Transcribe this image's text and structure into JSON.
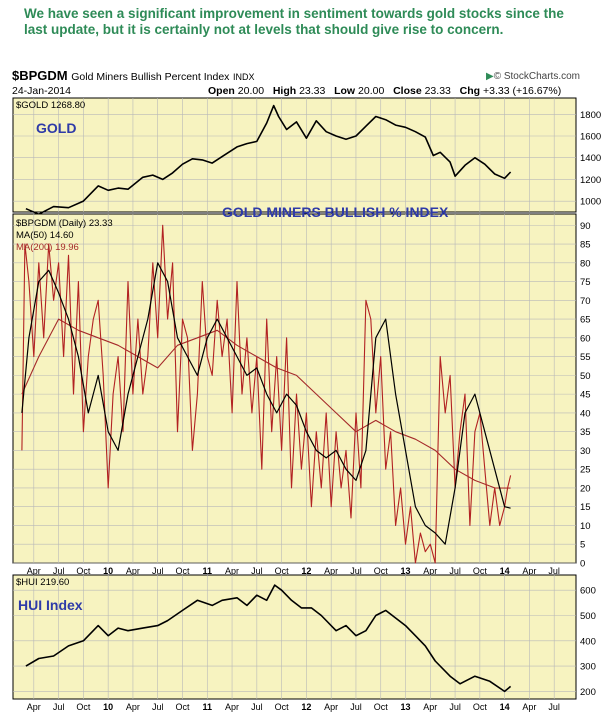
{
  "caption": "We have seen a significant improvement in sentiment towards gold stocks since the last update, but it is certainly not at levels that should give rise to concern.",
  "header": {
    "symbol": "$BPGDM",
    "name": "Gold Miners Bullish Percent Index",
    "exchange": "INDX",
    "date": "24-Jan-2014",
    "open_label": "Open",
    "open": "20.00",
    "high_label": "High",
    "high": "23.33",
    "low_label": "Low",
    "low": "20.00",
    "close_label": "Close",
    "close": "23.33",
    "chg_label": "Chg",
    "chg": "+3.33 (+16.67%)",
    "watermark": "© StockCharts.com",
    "watermark_arrow_icon": "triangle-right-icon"
  },
  "colors": {
    "panel_bg": "#f7f3c0",
    "grid": "#b8b8b8",
    "price_line": "#000000",
    "ma50": "#000000",
    "ma200": "#a52a2a",
    "bpgdm_line": "#b22222",
    "title_blue": "#2e3aa8",
    "caption_green": "#2e8b57"
  },
  "chart_data": [
    {
      "panel": "gold",
      "type": "line",
      "legend": "$GOLD 1268.80",
      "annotation": "GOLD",
      "ylim": [
        900,
        1950
      ],
      "yticks": [
        1000,
        1200,
        1400,
        1600,
        1800
      ],
      "grid": true,
      "x": [
        2009.17,
        2009.3,
        2009.45,
        2009.6,
        2009.75,
        2009.9,
        2010.0,
        2010.1,
        2010.2,
        2010.35,
        2010.45,
        2010.55,
        2010.65,
        2010.75,
        2010.85,
        2010.95,
        2011.05,
        2011.15,
        2011.3,
        2011.4,
        2011.5,
        2011.6,
        2011.67,
        2011.72,
        2011.8,
        2011.9,
        2012.0,
        2012.1,
        2012.2,
        2012.3,
        2012.4,
        2012.5,
        2012.6,
        2012.7,
        2012.8,
        2012.9,
        2013.0,
        2013.1,
        2013.2,
        2013.28,
        2013.35,
        2013.45,
        2013.5,
        2013.6,
        2013.7,
        2013.8,
        2013.9,
        2014.0,
        2014.06
      ],
      "values": [
        930,
        880,
        950,
        940,
        1000,
        1140,
        1100,
        1120,
        1110,
        1220,
        1240,
        1200,
        1260,
        1340,
        1390,
        1380,
        1350,
        1410,
        1500,
        1530,
        1550,
        1720,
        1880,
        1780,
        1660,
        1730,
        1580,
        1740,
        1640,
        1600,
        1570,
        1600,
        1690,
        1780,
        1750,
        1700,
        1680,
        1640,
        1590,
        1420,
        1450,
        1360,
        1230,
        1330,
        1400,
        1340,
        1250,
        1210,
        1268.8
      ]
    },
    {
      "panel": "bpgdm",
      "type": "line",
      "legend": [
        "$BPGDM (Daily) 23.33",
        "MA(50) 14.60",
        "MA(200) 19.96"
      ],
      "annotation": "GOLD MINERS BULLISH % INDEX",
      "ylim": [
        0,
        93
      ],
      "yticks": [
        0,
        5,
        10,
        15,
        20,
        25,
        30,
        35,
        40,
        45,
        50,
        55,
        60,
        65,
        70,
        75,
        80,
        85,
        90
      ],
      "grid": true,
      "series": [
        {
          "name": "$BPGDM (Daily) 23.33",
          "x": [
            2009.13,
            2009.16,
            2009.2,
            2009.25,
            2009.3,
            2009.35,
            2009.4,
            2009.45,
            2009.5,
            2009.55,
            2009.6,
            2009.65,
            2009.7,
            2009.75,
            2009.8,
            2009.85,
            2009.9,
            2009.95,
            2010.0,
            2010.05,
            2010.1,
            2010.15,
            2010.2,
            2010.25,
            2010.3,
            2010.35,
            2010.4,
            2010.45,
            2010.5,
            2010.55,
            2010.6,
            2010.65,
            2010.7,
            2010.75,
            2010.8,
            2010.85,
            2010.9,
            2010.95,
            2011.0,
            2011.05,
            2011.1,
            2011.15,
            2011.2,
            2011.25,
            2011.3,
            2011.35,
            2011.4,
            2011.45,
            2011.5,
            2011.55,
            2011.6,
            2011.65,
            2011.7,
            2011.75,
            2011.8,
            2011.85,
            2011.9,
            2011.95,
            2012.0,
            2012.05,
            2012.1,
            2012.15,
            2012.2,
            2012.25,
            2012.3,
            2012.35,
            2012.4,
            2012.45,
            2012.5,
            2012.55,
            2012.6,
            2012.65,
            2012.7,
            2012.75,
            2012.8,
            2012.85,
            2012.9,
            2012.95,
            2013.0,
            2013.05,
            2013.1,
            2013.15,
            2013.2,
            2013.25,
            2013.3,
            2013.35,
            2013.4,
            2013.45,
            2013.5,
            2013.55,
            2013.6,
            2013.65,
            2013.7,
            2013.75,
            2013.8,
            2013.85,
            2013.9,
            2013.95,
            2014.0,
            2014.03,
            2014.06
          ],
          "values": [
            30,
            85,
            75,
            55,
            80,
            60,
            85,
            70,
            80,
            55,
            82,
            45,
            75,
            35,
            55,
            65,
            70,
            50,
            20,
            45,
            55,
            35,
            75,
            45,
            65,
            45,
            55,
            80,
            60,
            90,
            65,
            80,
            35,
            65,
            60,
            30,
            45,
            75,
            55,
            50,
            70,
            55,
            65,
            40,
            75,
            45,
            60,
            40,
            55,
            25,
            65,
            35,
            55,
            30,
            60,
            20,
            45,
            25,
            40,
            15,
            35,
            20,
            40,
            15,
            35,
            20,
            30,
            12,
            40,
            20,
            70,
            65,
            40,
            55,
            25,
            35,
            10,
            20,
            5,
            15,
            0,
            8,
            3,
            5,
            0,
            55,
            40,
            50,
            20,
            35,
            45,
            10,
            35,
            40,
            25,
            10,
            20,
            10,
            15,
            20,
            23.33
          ]
        },
        {
          "name": "MA(50) 14.60",
          "x": [
            2009.13,
            2009.2,
            2009.3,
            2009.4,
            2009.5,
            2009.6,
            2009.7,
            2009.8,
            2009.9,
            2010.0,
            2010.1,
            2010.2,
            2010.3,
            2010.4,
            2010.5,
            2010.6,
            2010.7,
            2010.8,
            2010.9,
            2011.0,
            2011.1,
            2011.2,
            2011.3,
            2011.4,
            2011.5,
            2011.6,
            2011.7,
            2011.8,
            2011.9,
            2012.0,
            2012.1,
            2012.2,
            2012.3,
            2012.4,
            2012.5,
            2012.6,
            2012.7,
            2012.8,
            2012.9,
            2013.0,
            2013.1,
            2013.2,
            2013.3,
            2013.4,
            2013.5,
            2013.6,
            2013.7,
            2013.8,
            2013.9,
            2014.0,
            2014.06
          ],
          "values": [
            40,
            60,
            75,
            78,
            72,
            65,
            55,
            40,
            50,
            35,
            30,
            45,
            55,
            65,
            80,
            75,
            60,
            55,
            50,
            60,
            65,
            60,
            55,
            50,
            52,
            45,
            40,
            45,
            42,
            35,
            30,
            28,
            30,
            25,
            22,
            30,
            60,
            65,
            45,
            30,
            15,
            10,
            8,
            5,
            20,
            40,
            45,
            35,
            25,
            15,
            14.6
          ]
        },
        {
          "name": "MA(200) 19.96",
          "x": [
            2009.13,
            2009.3,
            2009.5,
            2009.7,
            2009.9,
            2010.1,
            2010.3,
            2010.5,
            2010.7,
            2010.9,
            2011.1,
            2011.3,
            2011.5,
            2011.7,
            2011.9,
            2012.1,
            2012.3,
            2012.5,
            2012.7,
            2012.9,
            2013.1,
            2013.3,
            2013.5,
            2013.7,
            2013.9,
            2014.06
          ],
          "values": [
            45,
            55,
            65,
            62,
            60,
            58,
            55,
            52,
            58,
            60,
            62,
            58,
            55,
            52,
            50,
            45,
            40,
            35,
            38,
            35,
            33,
            30,
            25,
            22,
            20,
            19.96
          ]
        }
      ]
    },
    {
      "panel": "hui",
      "type": "line",
      "legend": "$HUI 219.60",
      "annotation": "HUI Index",
      "ylim": [
        170,
        660
      ],
      "yticks": [
        200,
        300,
        400,
        500,
        600
      ],
      "grid": true,
      "x": [
        2009.17,
        2009.3,
        2009.45,
        2009.6,
        2009.75,
        2009.9,
        2010.0,
        2010.1,
        2010.2,
        2010.35,
        2010.5,
        2010.6,
        2010.75,
        2010.9,
        2011.05,
        2011.15,
        2011.3,
        2011.4,
        2011.5,
        2011.6,
        2011.68,
        2011.75,
        2011.85,
        2011.95,
        2012.05,
        2012.15,
        2012.3,
        2012.4,
        2012.5,
        2012.6,
        2012.7,
        2012.8,
        2012.9,
        2013.0,
        2013.1,
        2013.2,
        2013.3,
        2013.45,
        2013.55,
        2013.7,
        2013.85,
        2014.0,
        2014.06
      ],
      "values": [
        300,
        330,
        340,
        380,
        400,
        460,
        420,
        450,
        440,
        450,
        460,
        480,
        520,
        560,
        540,
        560,
        570,
        540,
        580,
        560,
        620,
        600,
        560,
        530,
        530,
        500,
        440,
        460,
        420,
        440,
        500,
        520,
        490,
        460,
        420,
        380,
        320,
        260,
        230,
        260,
        240,
        200,
        219.6
      ]
    }
  ],
  "x_tick_labels": [
    "Apr",
    "Jul",
    "Oct",
    "10",
    "Apr",
    "Jul",
    "Oct",
    "11",
    "Apr",
    "Jul",
    "Oct",
    "12",
    "Apr",
    "Jul",
    "Oct",
    "13",
    "Apr",
    "Jul",
    "Oct",
    "14",
    "Apr",
    "Jul"
  ],
  "x_tick_values": [
    2009.25,
    2009.5,
    2009.75,
    2010.0,
    2010.25,
    2010.5,
    2010.75,
    2011.0,
    2011.25,
    2011.5,
    2011.75,
    2012.0,
    2012.25,
    2012.5,
    2012.75,
    2013.0,
    2013.25,
    2013.5,
    2013.75,
    2014.0,
    2014.25,
    2014.5
  ]
}
